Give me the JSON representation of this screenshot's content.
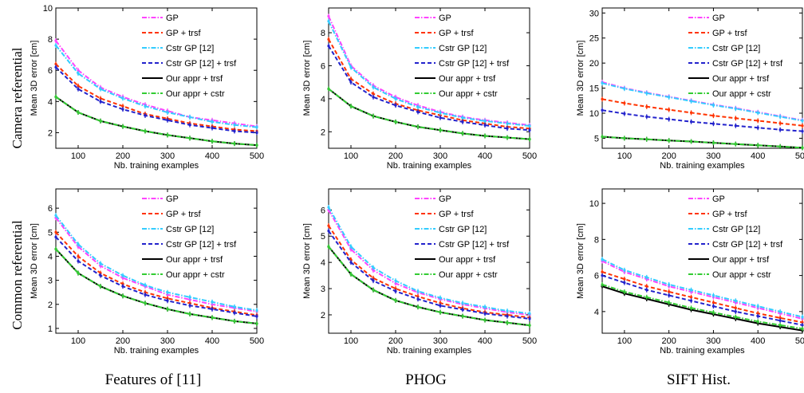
{
  "row_labels": [
    "Camera referential",
    "Common referential"
  ],
  "col_labels": [
    "Features of [11]",
    "PHOG",
    "SIFT Hist."
  ],
  "series_styles": [
    {
      "name": "GP",
      "color": "#ff44ff",
      "dash": "6,2,1.5,2"
    },
    {
      "name": "GP + trsf",
      "color": "#ff3300",
      "dash": "5,3"
    },
    {
      "name": "Cstr GP [12]",
      "color": "#33ccff",
      "dash": "6,2,1.5,2"
    },
    {
      "name": "Cstr GP [12] + trsf",
      "color": "#2222cc",
      "dash": "5,3"
    },
    {
      "name": "Our appr + trsf",
      "color": "#000000",
      "dash": ""
    },
    {
      "name": "Our appr + cstr",
      "color": "#33cc33",
      "dash": "6,2,1.5,2"
    }
  ],
  "chart_data": [
    {
      "type": "line",
      "xlabel": "Nb. training examples",
      "ylabel": "Mean 3D error [cm]",
      "xlim": [
        50,
        500
      ],
      "ylim": [
        1,
        10
      ],
      "xticks": [
        100,
        200,
        300,
        400,
        500
      ],
      "yticks": [
        2,
        4,
        6,
        8,
        10
      ],
      "legend": "top-right",
      "x": [
        50,
        100,
        150,
        200,
        250,
        300,
        350,
        400,
        450,
        500
      ],
      "series": [
        {
          "name": "GP",
          "values": [
            7.9,
            6.0,
            4.9,
            4.3,
            3.8,
            3.4,
            3.0,
            2.8,
            2.6,
            2.4
          ]
        },
        {
          "name": "GP + trsf",
          "values": [
            6.4,
            5.0,
            4.2,
            3.7,
            3.2,
            2.9,
            2.6,
            2.4,
            2.2,
            2.1
          ]
        },
        {
          "name": "Cstr GP [12]",
          "values": [
            7.6,
            5.8,
            4.8,
            4.2,
            3.7,
            3.3,
            3.0,
            2.7,
            2.5,
            2.35
          ]
        },
        {
          "name": "Cstr GP [12] + trsf",
          "values": [
            6.2,
            4.8,
            4.0,
            3.5,
            3.1,
            2.8,
            2.5,
            2.3,
            2.1,
            2.0
          ]
        },
        {
          "name": "Our appr + trsf",
          "values": [
            4.3,
            3.3,
            2.75,
            2.4,
            2.1,
            1.85,
            1.65,
            1.45,
            1.3,
            1.2
          ]
        },
        {
          "name": "Our appr + cstr",
          "values": [
            4.3,
            3.3,
            2.75,
            2.4,
            2.1,
            1.85,
            1.65,
            1.45,
            1.3,
            1.2
          ]
        }
      ]
    },
    {
      "type": "line",
      "xlabel": "Nb. training examples",
      "ylabel": "Mean 3D error [cm]",
      "xlim": [
        50,
        500
      ],
      "ylim": [
        1,
        9.5
      ],
      "xticks": [
        100,
        200,
        300,
        400,
        500
      ],
      "yticks": [
        2,
        4,
        6,
        8
      ],
      "legend": "top-right",
      "x": [
        50,
        100,
        150,
        200,
        250,
        300,
        350,
        400,
        450,
        500
      ],
      "series": [
        {
          "name": "GP",
          "values": [
            9.0,
            6.0,
            4.8,
            4.1,
            3.6,
            3.2,
            2.9,
            2.7,
            2.55,
            2.4
          ]
        },
        {
          "name": "GP + trsf",
          "values": [
            7.6,
            5.2,
            4.3,
            3.7,
            3.3,
            3.0,
            2.7,
            2.5,
            2.3,
            2.2
          ]
        },
        {
          "name": "Cstr GP [12]",
          "values": [
            8.7,
            5.9,
            4.7,
            4.0,
            3.5,
            3.15,
            2.85,
            2.65,
            2.5,
            2.35
          ]
        },
        {
          "name": "Cstr GP [12] + trsf",
          "values": [
            7.2,
            5.0,
            4.1,
            3.6,
            3.2,
            2.85,
            2.6,
            2.4,
            2.2,
            2.1
          ]
        },
        {
          "name": "Our appr + trsf",
          "values": [
            4.6,
            3.55,
            2.95,
            2.6,
            2.3,
            2.1,
            1.9,
            1.75,
            1.65,
            1.55
          ]
        },
        {
          "name": "Our appr + cstr",
          "values": [
            4.6,
            3.55,
            2.95,
            2.6,
            2.3,
            2.1,
            1.9,
            1.75,
            1.65,
            1.55
          ]
        }
      ]
    },
    {
      "type": "line",
      "xlabel": "Nb. training examples",
      "ylabel": "Mean 3D error [cm]",
      "xlim": [
        50,
        500
      ],
      "ylim": [
        3,
        31
      ],
      "xticks": [
        100,
        200,
        300,
        400,
        500
      ],
      "yticks": [
        5,
        10,
        15,
        20,
        25,
        30
      ],
      "legend": "top-right",
      "x": [
        50,
        100,
        150,
        200,
        250,
        300,
        350,
        400,
        450,
        500
      ],
      "series": [
        {
          "name": "GP",
          "values": [
            16.2,
            15.0,
            14.1,
            13.3,
            12.5,
            11.7,
            11.0,
            10.2,
            9.4,
            8.6
          ]
        },
        {
          "name": "GP + trsf",
          "values": [
            12.8,
            12.0,
            11.3,
            10.7,
            10.1,
            9.5,
            9.0,
            8.5,
            8.0,
            7.5
          ]
        },
        {
          "name": "Cstr GP [12]",
          "values": [
            16.0,
            14.9,
            14.0,
            13.2,
            12.4,
            11.6,
            10.9,
            10.1,
            9.3,
            8.5
          ]
        },
        {
          "name": "Cstr GP [12] + trsf",
          "values": [
            10.6,
            9.9,
            9.3,
            8.8,
            8.3,
            7.9,
            7.5,
            7.1,
            6.7,
            6.4
          ]
        },
        {
          "name": "Our appr + trsf",
          "values": [
            5.3,
            5.0,
            4.8,
            4.55,
            4.35,
            4.1,
            3.85,
            3.6,
            3.35,
            3.1
          ]
        },
        {
          "name": "Our appr + cstr",
          "values": [
            5.3,
            5.0,
            4.8,
            4.55,
            4.35,
            4.1,
            3.85,
            3.6,
            3.35,
            3.1
          ]
        }
      ]
    },
    {
      "type": "line",
      "xlabel": "Nb. training examples",
      "ylabel": "Mean 3D error [cm]",
      "xlim": [
        50,
        500
      ],
      "ylim": [
        0.8,
        6.8
      ],
      "xticks": [
        100,
        200,
        300,
        400,
        500
      ],
      "yticks": [
        1,
        2,
        3,
        4,
        5,
        6
      ],
      "legend": "top-right",
      "x": [
        50,
        100,
        150,
        200,
        250,
        300,
        350,
        400,
        450,
        500
      ],
      "series": [
        {
          "name": "GP",
          "values": [
            5.6,
            4.4,
            3.6,
            3.1,
            2.75,
            2.4,
            2.2,
            2.0,
            1.85,
            1.7
          ]
        },
        {
          "name": "GP + trsf",
          "values": [
            5.0,
            4.0,
            3.3,
            2.85,
            2.5,
            2.25,
            2.05,
            1.85,
            1.7,
            1.55
          ]
        },
        {
          "name": "Cstr GP [12]",
          "values": [
            5.7,
            4.5,
            3.7,
            3.2,
            2.8,
            2.5,
            2.3,
            2.1,
            1.9,
            1.75
          ]
        },
        {
          "name": "Cstr GP [12] + trsf",
          "values": [
            4.8,
            3.8,
            3.2,
            2.75,
            2.4,
            2.15,
            1.95,
            1.8,
            1.65,
            1.5
          ]
        },
        {
          "name": "Our appr + trsf",
          "values": [
            4.3,
            3.3,
            2.75,
            2.35,
            2.05,
            1.8,
            1.6,
            1.45,
            1.3,
            1.2
          ]
        },
        {
          "name": "Our appr + cstr",
          "values": [
            4.3,
            3.3,
            2.75,
            2.35,
            2.05,
            1.8,
            1.6,
            1.45,
            1.3,
            1.2
          ]
        }
      ]
    },
    {
      "type": "line",
      "xlabel": "Nb. training examples",
      "ylabel": "Mean 3D error [cm]",
      "xlim": [
        50,
        500
      ],
      "ylim": [
        1.3,
        6.8
      ],
      "xticks": [
        100,
        200,
        300,
        400,
        500
      ],
      "yticks": [
        2,
        3,
        4,
        5,
        6
      ],
      "legend": "top-right",
      "x": [
        50,
        100,
        150,
        200,
        250,
        300,
        350,
        400,
        450,
        500
      ],
      "series": [
        {
          "name": "GP",
          "values": [
            6.0,
            4.5,
            3.7,
            3.2,
            2.85,
            2.6,
            2.4,
            2.25,
            2.1,
            2.0
          ]
        },
        {
          "name": "GP + trsf",
          "values": [
            5.4,
            4.1,
            3.4,
            3.0,
            2.7,
            2.45,
            2.25,
            2.1,
            2.0,
            1.9
          ]
        },
        {
          "name": "Cstr GP [12]",
          "values": [
            6.1,
            4.6,
            3.8,
            3.3,
            2.9,
            2.65,
            2.45,
            2.3,
            2.15,
            2.05
          ]
        },
        {
          "name": "Cstr GP [12] + trsf",
          "values": [
            5.2,
            4.0,
            3.3,
            2.9,
            2.6,
            2.35,
            2.2,
            2.05,
            1.95,
            1.85
          ]
        },
        {
          "name": "Our appr + trsf",
          "values": [
            4.6,
            3.55,
            2.95,
            2.55,
            2.3,
            2.1,
            1.95,
            1.8,
            1.7,
            1.6
          ]
        },
        {
          "name": "Our appr + cstr",
          "values": [
            4.6,
            3.55,
            2.95,
            2.55,
            2.3,
            2.1,
            1.95,
            1.8,
            1.7,
            1.6
          ]
        }
      ]
    },
    {
      "type": "line",
      "xlabel": "Nb. training examples",
      "ylabel": "Mean 3D error [cm]",
      "xlim": [
        50,
        500
      ],
      "ylim": [
        2.8,
        10.8
      ],
      "xticks": [
        100,
        200,
        300,
        400,
        500
      ],
      "yticks": [
        4,
        6,
        8,
        10
      ],
      "legend": "top-right",
      "x": [
        50,
        100,
        150,
        200,
        250,
        300,
        350,
        400,
        450,
        500
      ],
      "series": [
        {
          "name": "GP",
          "values": [
            6.8,
            6.2,
            5.8,
            5.4,
            5.1,
            4.8,
            4.5,
            4.2,
            3.9,
            3.6
          ]
        },
        {
          "name": "GP + trsf",
          "values": [
            6.2,
            5.8,
            5.4,
            5.1,
            4.8,
            4.5,
            4.2,
            3.9,
            3.65,
            3.4
          ]
        },
        {
          "name": "Cstr GP [12]",
          "values": [
            6.9,
            6.3,
            5.9,
            5.5,
            5.2,
            4.9,
            4.6,
            4.3,
            4.0,
            3.7
          ]
        },
        {
          "name": "Cstr GP [12] + trsf",
          "values": [
            6.0,
            5.6,
            5.2,
            4.9,
            4.6,
            4.3,
            4.0,
            3.75,
            3.5,
            3.25
          ]
        },
        {
          "name": "Our appr + trsf",
          "values": [
            5.4,
            5.0,
            4.7,
            4.4,
            4.1,
            3.85,
            3.6,
            3.35,
            3.15,
            2.95
          ]
        },
        {
          "name": "Our appr + cstr",
          "values": [
            5.5,
            5.1,
            4.8,
            4.5,
            4.2,
            3.95,
            3.7,
            3.45,
            3.25,
            3.05
          ]
        }
      ]
    }
  ]
}
